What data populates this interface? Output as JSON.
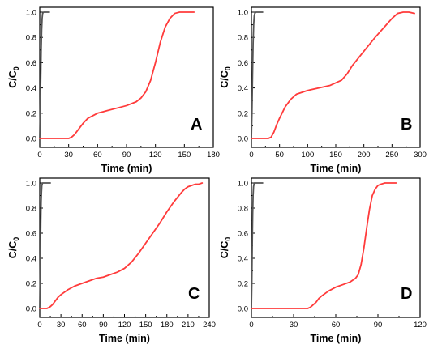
{
  "chart_data": [
    {
      "type": "line",
      "panel_label": "A",
      "xlabel": "Time (min)",
      "ylabel": "C/C",
      "ylabel_subscript": "0",
      "xlim": [
        0,
        180
      ],
      "ylim": [
        0,
        1.0
      ],
      "xticks": [
        0,
        30,
        60,
        90,
        120,
        150,
        180
      ],
      "yticks": [
        "0.0",
        "0.2",
        "0.4",
        "0.6",
        "0.8",
        "1.0"
      ],
      "colors": {
        "gray": "#555555",
        "red": "#ff3b3b"
      },
      "series": [
        {
          "color": "gray",
          "x": [
            0,
            0.5,
            1,
            1.5,
            2,
            2.5,
            3,
            4,
            6,
            8,
            10
          ],
          "y": [
            0,
            0.2,
            0.46,
            0.7,
            0.86,
            0.95,
            0.99,
            1.0,
            1.0,
            1.0,
            1.0
          ]
        },
        {
          "color": "red",
          "x": [
            0,
            10,
            20,
            30,
            33,
            36,
            40,
            45,
            50,
            55,
            60,
            70,
            80,
            90,
            100,
            105,
            110,
            115,
            120,
            125,
            130,
            135,
            140,
            145,
            150,
            155,
            160
          ],
          "y": [
            0,
            0,
            0,
            0,
            0.01,
            0.03,
            0.07,
            0.12,
            0.16,
            0.18,
            0.2,
            0.22,
            0.24,
            0.26,
            0.29,
            0.32,
            0.37,
            0.46,
            0.6,
            0.76,
            0.88,
            0.95,
            0.99,
            1.0,
            1.0,
            1.0,
            1.0
          ]
        }
      ]
    },
    {
      "type": "line",
      "panel_label": "B",
      "xlabel": "Time (min)",
      "ylabel": "C/C",
      "ylabel_subscript": "0",
      "xlim": [
        0,
        300
      ],
      "ylim": [
        0,
        1.0
      ],
      "xticks": [
        0,
        50,
        100,
        150,
        200,
        250,
        300
      ],
      "yticks": [
        "0.0",
        "0.2",
        "0.4",
        "0.6",
        "0.8",
        "1.0"
      ],
      "colors": {
        "gray": "#555555",
        "red": "#ff3b3b"
      },
      "series": [
        {
          "color": "gray",
          "x": [
            0,
            1,
            2,
            3,
            4,
            5,
            6,
            8,
            10,
            15,
            20
          ],
          "y": [
            0,
            0.2,
            0.5,
            0.75,
            0.9,
            0.97,
            0.99,
            1.0,
            1.0,
            1.0,
            1.0
          ]
        },
        {
          "color": "red",
          "x": [
            0,
            20,
            30,
            35,
            40,
            45,
            50,
            60,
            70,
            80,
            100,
            120,
            140,
            160,
            170,
            180,
            200,
            220,
            240,
            250,
            260,
            270,
            280,
            290
          ],
          "y": [
            0,
            0,
            0,
            0.01,
            0.05,
            0.11,
            0.16,
            0.25,
            0.31,
            0.35,
            0.38,
            0.4,
            0.42,
            0.46,
            0.51,
            0.58,
            0.69,
            0.8,
            0.9,
            0.95,
            0.99,
            1.0,
            1.0,
            0.99
          ]
        }
      ]
    },
    {
      "type": "line",
      "panel_label": "C",
      "xlabel": "Time (min)",
      "ylabel": "C/C",
      "ylabel_subscript": "0",
      "xlim": [
        0,
        240
      ],
      "ylim": [
        0,
        1.0
      ],
      "xticks": [
        0,
        30,
        60,
        90,
        120,
        150,
        180,
        210,
        240
      ],
      "yticks": [
        "0.0",
        "0.2",
        "0.4",
        "0.6",
        "0.8",
        "1.0"
      ],
      "colors": {
        "gray": "#555555",
        "red": "#ff3b3b"
      },
      "series": [
        {
          "color": "gray",
          "x": [
            0,
            0.5,
            1,
            1.5,
            2,
            2.5,
            3,
            4,
            6,
            10,
            15
          ],
          "y": [
            0,
            0.2,
            0.45,
            0.7,
            0.85,
            0.93,
            0.98,
            1.0,
            1.0,
            1.0,
            1.0
          ]
        },
        {
          "color": "red",
          "x": [
            0,
            10,
            14,
            18,
            22,
            26,
            30,
            40,
            50,
            60,
            70,
            80,
            90,
            100,
            110,
            120,
            130,
            140,
            150,
            160,
            170,
            180,
            190,
            200,
            205,
            210,
            215,
            220,
            225,
            230
          ],
          "y": [
            0,
            0,
            0.01,
            0.03,
            0.06,
            0.09,
            0.11,
            0.15,
            0.18,
            0.2,
            0.22,
            0.24,
            0.25,
            0.27,
            0.29,
            0.32,
            0.37,
            0.44,
            0.52,
            0.6,
            0.68,
            0.77,
            0.85,
            0.92,
            0.95,
            0.97,
            0.98,
            0.99,
            0.99,
            1.0
          ]
        }
      ]
    },
    {
      "type": "line",
      "panel_label": "D",
      "xlabel": "Time (min)",
      "ylabel": "C/C",
      "ylabel_subscript": "0",
      "xlim": [
        0,
        120
      ],
      "ylim": [
        0,
        1.0
      ],
      "xticks": [
        0,
        30,
        60,
        90,
        120
      ],
      "yticks": [
        "0.0",
        "0.2",
        "0.4",
        "0.6",
        "0.8",
        "1.0"
      ],
      "colors": {
        "gray": "#555555",
        "red": "#ff3b3b"
      },
      "series": [
        {
          "color": "gray",
          "x": [
            0,
            0.3,
            0.6,
            0.9,
            1.2,
            1.5,
            2,
            3,
            5,
            8
          ],
          "y": [
            0,
            0.2,
            0.5,
            0.75,
            0.9,
            0.97,
            1.0,
            1.0,
            1.0,
            1.0
          ]
        },
        {
          "color": "red",
          "x": [
            0,
            30,
            40,
            42,
            44,
            46,
            48,
            50,
            55,
            60,
            65,
            70,
            74,
            76,
            78,
            80,
            82,
            84,
            86,
            88,
            90,
            92,
            95,
            98,
            100,
            103
          ],
          "y": [
            0,
            0,
            0,
            0.01,
            0.03,
            0.05,
            0.08,
            0.1,
            0.14,
            0.17,
            0.19,
            0.21,
            0.24,
            0.27,
            0.35,
            0.48,
            0.64,
            0.79,
            0.9,
            0.95,
            0.98,
            0.99,
            1.0,
            1.0,
            1.0,
            1.0
          ]
        }
      ]
    }
  ]
}
